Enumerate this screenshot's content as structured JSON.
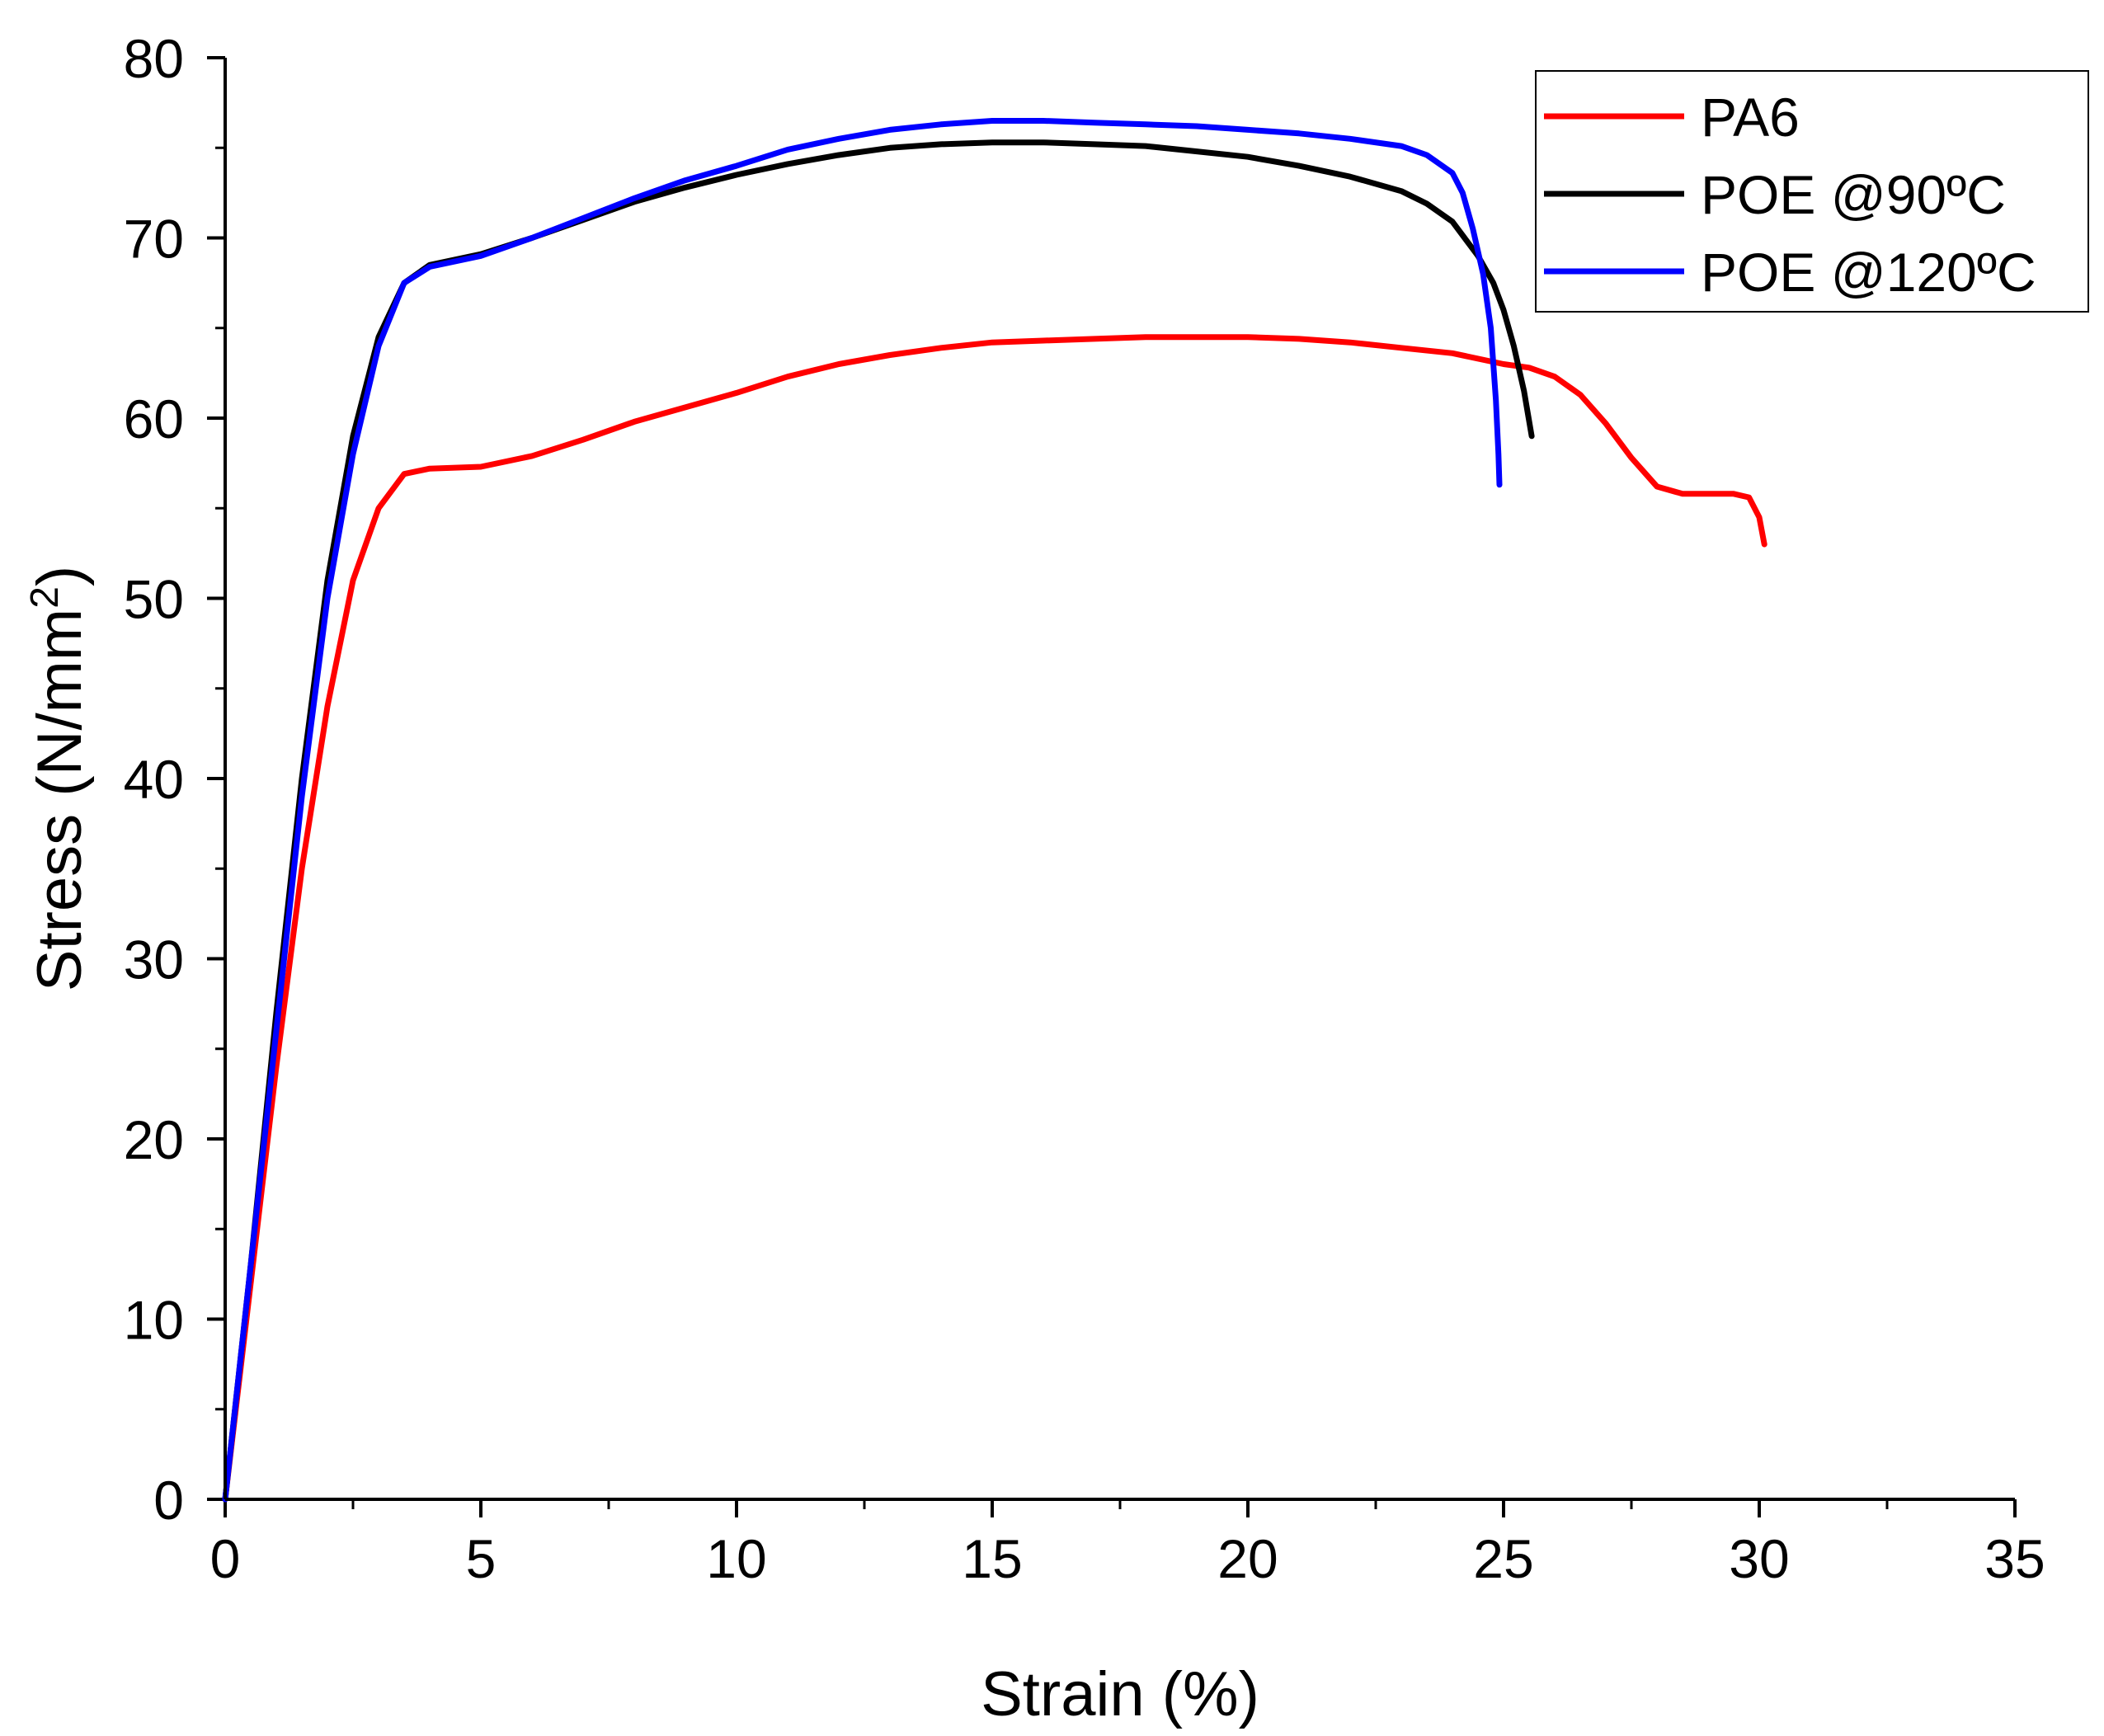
{
  "chart_data": {
    "type": "line",
    "title": "",
    "xlabel": "Strain (%)",
    "ylabel_main": "Stress (N/mm",
    "ylabel_sup": "2",
    "ylabel_close": ")",
    "xlim": [
      0,
      35
    ],
    "ylim": [
      0,
      80
    ],
    "xticks": [
      0,
      5,
      10,
      15,
      20,
      25,
      30,
      35
    ],
    "yticks": [
      0,
      10,
      20,
      30,
      40,
      50,
      60,
      70,
      80
    ],
    "grid": false,
    "legend_position": "top-right",
    "series": [
      {
        "name": "PA6",
        "color": "#ff0000",
        "x": [
          0,
          0.5,
          1.0,
          1.5,
          2.0,
          2.5,
          3.0,
          3.5,
          4.0,
          5.0,
          6.0,
          7.0,
          8.0,
          9.0,
          10.0,
          11.0,
          12.0,
          13.0,
          14.0,
          15.0,
          16.0,
          17.0,
          18.0,
          19.0,
          20.0,
          21.0,
          22.0,
          23.0,
          24.0,
          25.0,
          25.5,
          26.0,
          26.5,
          27.0,
          27.5,
          28.0,
          28.5,
          29.0,
          29.5,
          29.8,
          30.0,
          30.1
        ],
        "y": [
          0,
          12,
          24,
          35,
          44,
          51,
          55,
          56.9,
          57.2,
          57.3,
          57.9,
          58.8,
          59.8,
          60.6,
          61.4,
          62.3,
          63.0,
          63.5,
          63.9,
          64.2,
          64.3,
          64.4,
          64.5,
          64.5,
          64.5,
          64.4,
          64.2,
          63.9,
          63.6,
          63.0,
          62.8,
          62.3,
          61.3,
          59.7,
          57.8,
          56.2,
          55.8,
          55.8,
          55.8,
          55.6,
          54.5,
          53.0
        ]
      },
      {
        "name": "POE @90ºC",
        "color": "#000000",
        "x": [
          0,
          0.5,
          1.0,
          1.5,
          2.0,
          2.5,
          3.0,
          3.5,
          4.0,
          5.0,
          6.0,
          7.0,
          8.0,
          9.0,
          10.0,
          11.0,
          12.0,
          13.0,
          14.0,
          15.0,
          16.0,
          17.0,
          18.0,
          19.0,
          20.0,
          21.0,
          22.0,
          23.0,
          23.5,
          24.0,
          24.5,
          24.8,
          25.0,
          25.2,
          25.4,
          25.55
        ],
        "y": [
          0,
          13,
          27,
          40,
          51,
          59,
          64.5,
          67.5,
          68.5,
          69.1,
          70.0,
          71.0,
          72.0,
          72.8,
          73.5,
          74.1,
          74.6,
          75.0,
          75.2,
          75.3,
          75.3,
          75.2,
          75.1,
          74.8,
          74.5,
          74.0,
          73.4,
          72.6,
          71.9,
          70.9,
          69.0,
          67.5,
          66.0,
          64.0,
          61.5,
          59.0
        ]
      },
      {
        "name": "POE @120ºC",
        "color": "#0000ff",
        "x": [
          0,
          0.5,
          1.0,
          1.5,
          2.0,
          2.5,
          3.0,
          3.5,
          4.0,
          5.0,
          6.0,
          7.0,
          8.0,
          9.0,
          10.0,
          11.0,
          12.0,
          13.0,
          14.0,
          15.0,
          16.0,
          17.0,
          18.0,
          19.0,
          20.0,
          21.0,
          22.0,
          23.0,
          23.5,
          24.0,
          24.2,
          24.4,
          24.6,
          24.75,
          24.85,
          24.9,
          24.92
        ],
        "y": [
          0,
          13,
          26,
          39,
          50,
          58,
          64,
          67.5,
          68.4,
          69.0,
          70.0,
          71.1,
          72.2,
          73.2,
          74.0,
          74.9,
          75.5,
          76.0,
          76.3,
          76.5,
          76.5,
          76.4,
          76.3,
          76.2,
          76.0,
          75.8,
          75.5,
          75.1,
          74.6,
          73.6,
          72.5,
          70.5,
          68.0,
          65.0,
          61.0,
          58.0,
          56.3
        ]
      }
    ]
  }
}
